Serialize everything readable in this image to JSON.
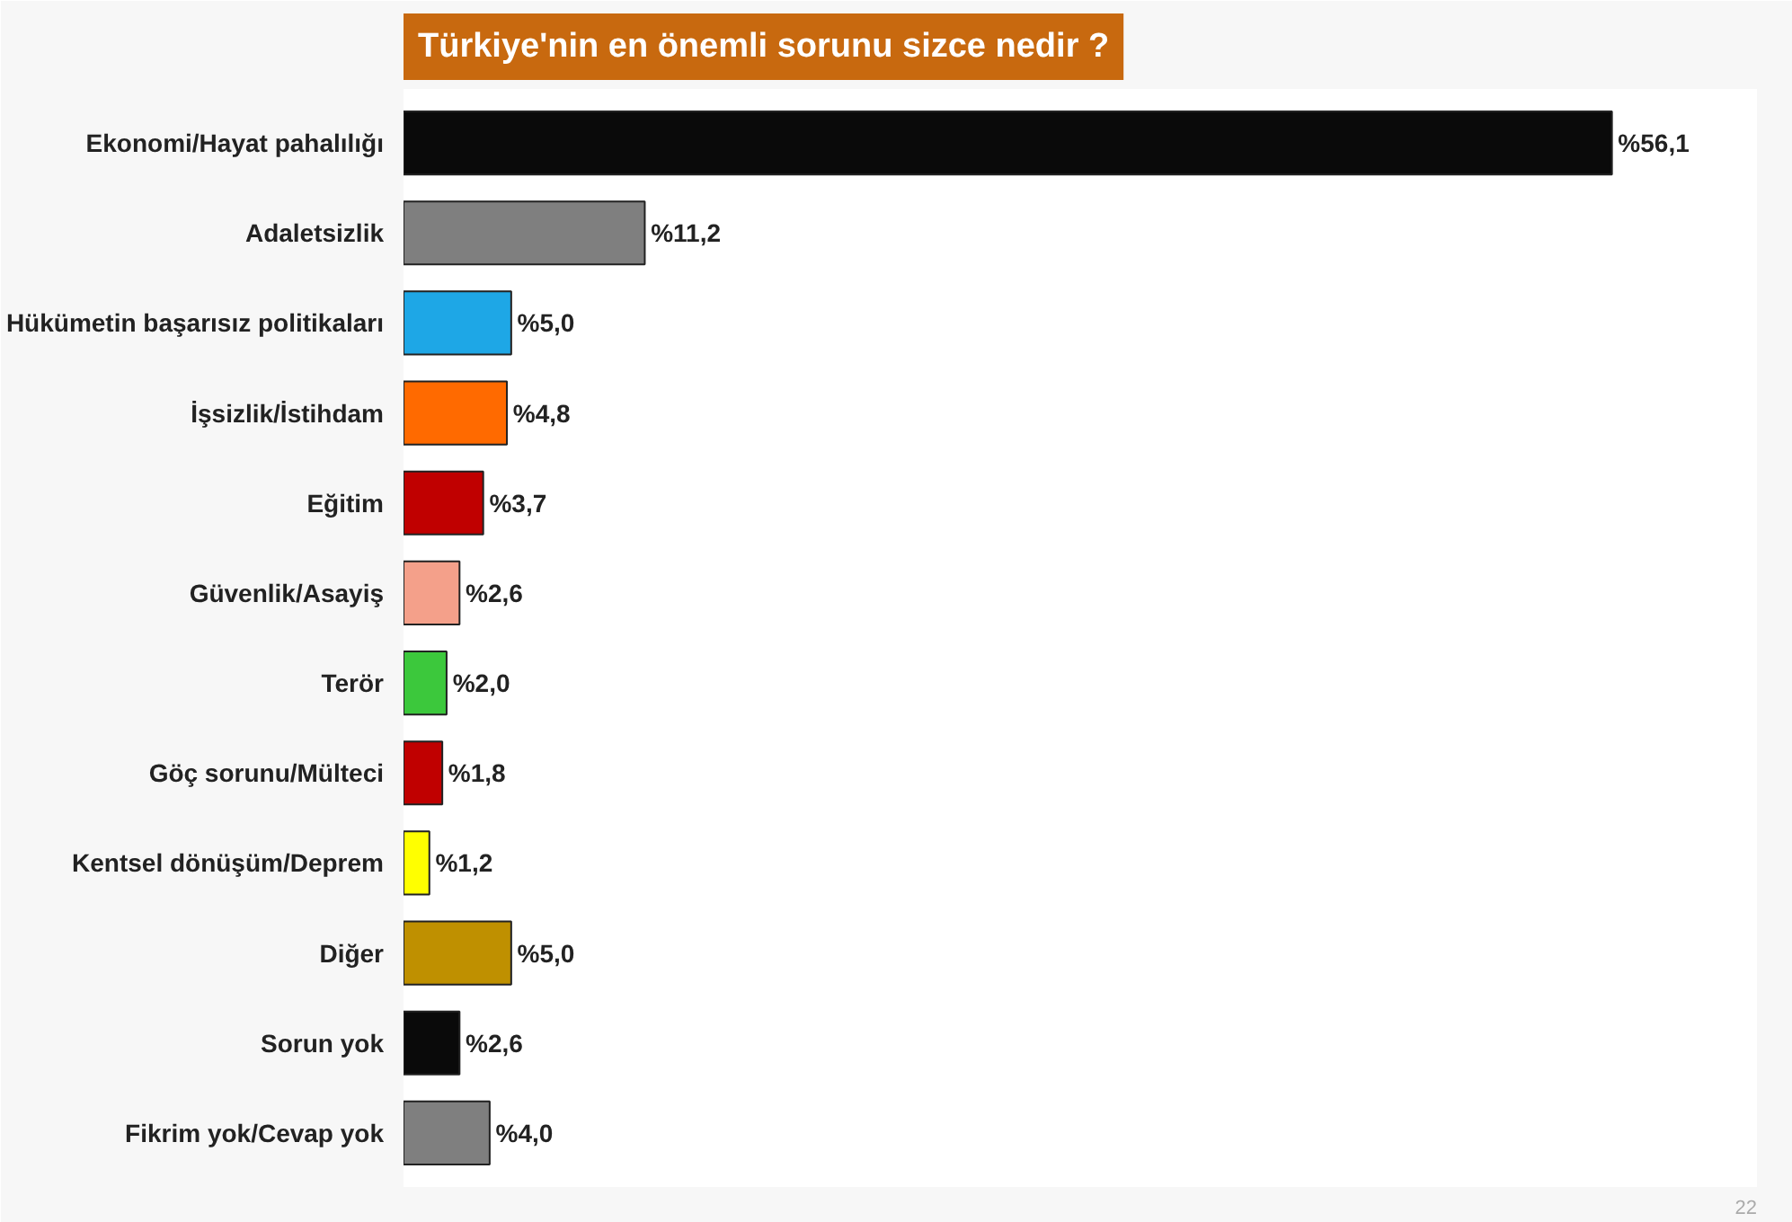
{
  "chart_data": {
    "type": "bar",
    "orientation": "horizontal",
    "title": "Türkiye'nin en önemli sorunu sizce nedir ?",
    "categories": [
      "Ekonomi/Hayat pahalılığı",
      "Adaletsizlik",
      "Hükümetin başarısız politikaları",
      "İşsizlik/İstihdam",
      "Eğitim",
      "Güvenlik/Asayiş",
      "Terör",
      "Göç sorunu/Mülteci",
      "Kentsel dönüşüm/Deprem",
      "Diğer",
      "Sorun yok",
      "Fikrim yok/Cevap yok"
    ],
    "values": [
      56.1,
      11.2,
      5.0,
      4.8,
      3.7,
      2.6,
      2.0,
      1.8,
      1.2,
      5.0,
      2.6,
      4.0
    ],
    "value_labels": [
      "%56,1",
      "%11,2",
      "%5,0",
      "%4,8",
      "%3,7",
      "%2,6",
      "%2,0",
      "%1,8",
      "%1,2",
      "%5,0",
      "%2,6",
      "%4,0"
    ],
    "colors": [
      "#0a0a0a",
      "#7f7f7f",
      "#1ea7e6",
      "#ff6a00",
      "#c00000",
      "#f4a08a",
      "#3cc83c",
      "#c00000",
      "#ffff00",
      "#bf9000",
      "#0a0a0a",
      "#7f7f7f"
    ],
    "grid": false,
    "tick_labels": "y",
    "annotations": [
      "22"
    ]
  }
}
